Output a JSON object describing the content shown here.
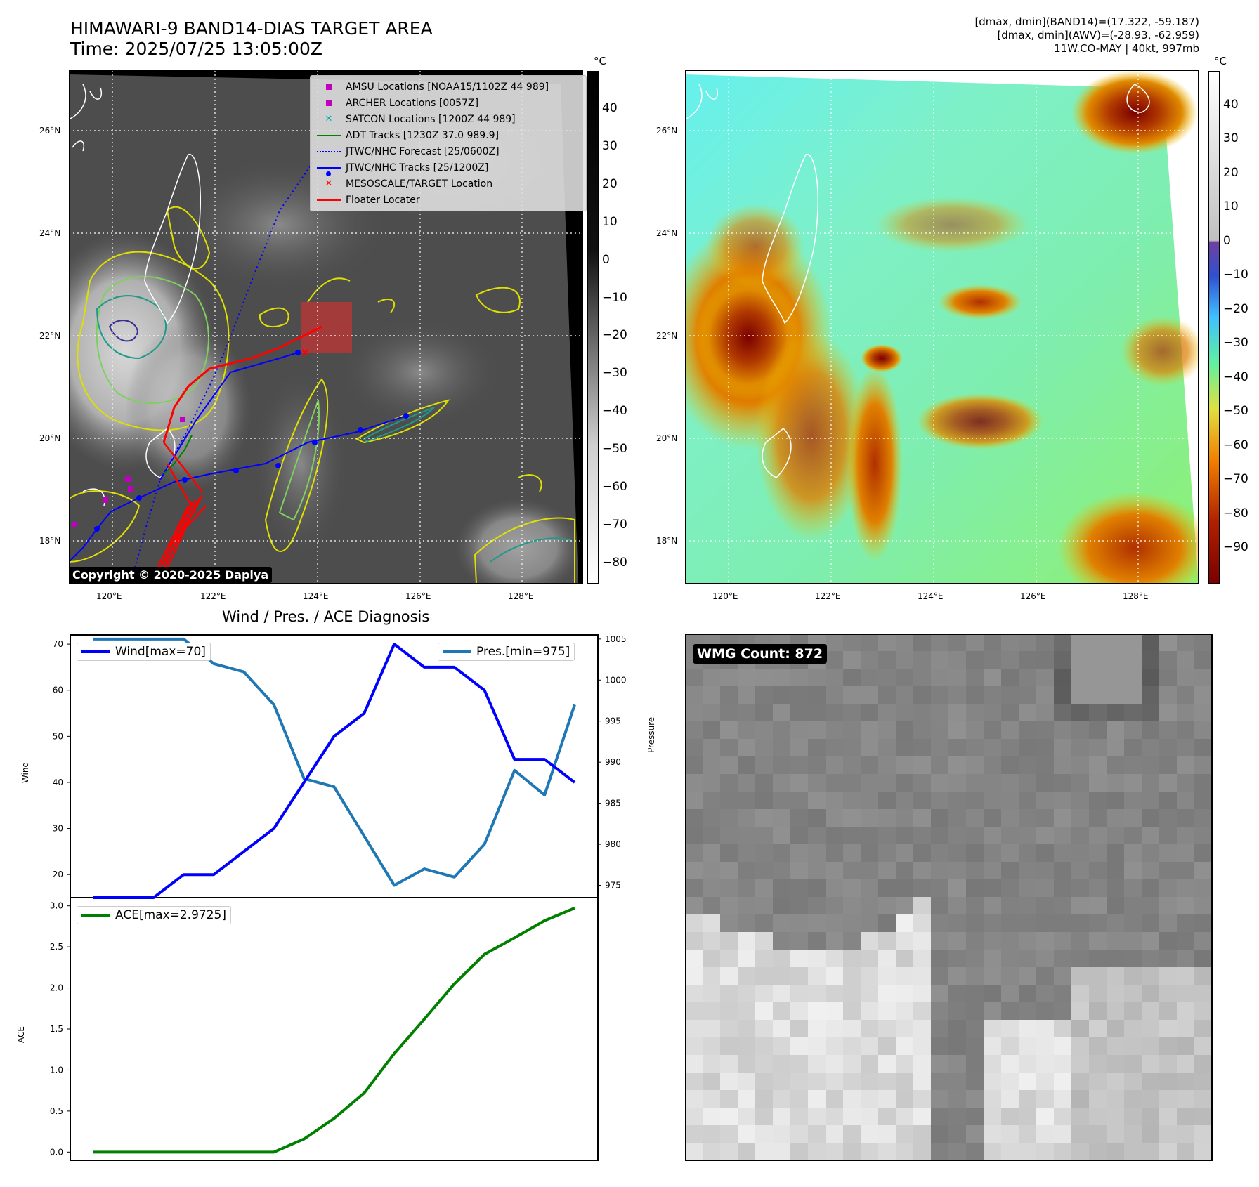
{
  "header": {
    "title_line1": "HIMAWARI-9 BAND14-DIAS TARGET AREA",
    "title_line2": "Time: 2025/07/25 13:05:00Z",
    "info_line1": "[dmax, dmin](BAND14)=(17.322, -59.187)",
    "info_line2": "[dmax, dmin](AWV)=(-28.93, -62.959)",
    "info_line3": "11W.CO-MAY | 40kt, 997mb"
  },
  "map": {
    "lat_labels": [
      "26°N",
      "24°N",
      "22°N",
      "20°N",
      "18°N"
    ],
    "lon_labels": [
      "120°E",
      "122°E",
      "124°E",
      "126°E",
      "128°E"
    ],
    "unit": "°C",
    "copyright": "Copyright © 2020-2025 Dapiya",
    "legend": [
      {
        "label": "AMSU Locations [NOAA15/1102Z 44 989]",
        "symbol": "square",
        "color": "#c000c0"
      },
      {
        "label": "ARCHER Locations [0057Z]",
        "symbol": "square",
        "color": "#c000c0"
      },
      {
        "label": "SATCON Locations [1200Z 44 989]",
        "symbol": "x",
        "color": "#00b0b0"
      },
      {
        "label": "ADT Tracks [1230Z 37.0 989.9]",
        "symbol": "line",
        "color": "#008000"
      },
      {
        "label": "JTWC/NHC Forecast [25/0600Z]",
        "symbol": "dotted",
        "color": "#0000ff"
      },
      {
        "label": "JTWC/NHC Tracks [25/1200Z]",
        "symbol": "dotline",
        "color": "#0000ff"
      },
      {
        "label": "MESOSCALE/TARGET Location",
        "symbol": "x",
        "color": "#ff0000"
      },
      {
        "label": "Floater Locater",
        "symbol": "line",
        "color": "#ff0000"
      }
    ]
  },
  "colorbar_left": {
    "ticks": [
      "40",
      "30",
      "20",
      "10",
      "0",
      "−10",
      "−20",
      "−30",
      "−40",
      "−50",
      "−60",
      "−70",
      "−80"
    ],
    "range": [
      -85,
      50
    ]
  },
  "colorbar_right": {
    "ticks": [
      "40",
      "30",
      "20",
      "10",
      "0",
      "−10",
      "−20",
      "−30",
      "−40",
      "−50",
      "−60",
      "−70",
      "−80",
      "−90"
    ],
    "range": [
      -100,
      50
    ]
  },
  "wmg": {
    "label": "WMG Count: 872"
  },
  "chart_data": [
    {
      "type": "line",
      "title": "Wind / Pres. / ACE Diagnosis",
      "ylabel": "Wind",
      "y2label": "Pressure",
      "ylim": [
        15,
        72
      ],
      "y2lim": [
        973.5,
        1005.5
      ],
      "yticks": [
        20,
        30,
        40,
        50,
        60,
        70
      ],
      "y2ticks": [
        975,
        980,
        985,
        990,
        995,
        1000,
        1005
      ],
      "series": [
        {
          "name": "Wind[max=70]",
          "color": "#0000ff",
          "axis": "left",
          "values": [
            15,
            15,
            15,
            20,
            20,
            25,
            30,
            40,
            50,
            55,
            70,
            65,
            65,
            60,
            45,
            45,
            40
          ]
        },
        {
          "name": "Pres.[min=975]",
          "color": "#1f77b4",
          "axis": "right",
          "values": [
            1005,
            1005,
            1005,
            1005,
            1002,
            1001,
            997,
            988,
            987,
            981,
            975,
            977,
            976,
            980,
            989,
            986,
            997
          ]
        }
      ]
    },
    {
      "type": "line",
      "ylabel": "ACE",
      "ylim": [
        -0.1,
        3.1
      ],
      "yticks": [
        "0.0",
        "0.5",
        "1.0",
        "1.5",
        "2.0",
        "2.5",
        "3.0"
      ],
      "series": [
        {
          "name": "ACE[max=2.9725]",
          "color": "#008000",
          "values": [
            0,
            0,
            0,
            0,
            0,
            0,
            0,
            0.16,
            0.41,
            0.72,
            1.2,
            1.62,
            2.05,
            2.41,
            2.61,
            2.82,
            2.9725
          ]
        }
      ]
    }
  ]
}
